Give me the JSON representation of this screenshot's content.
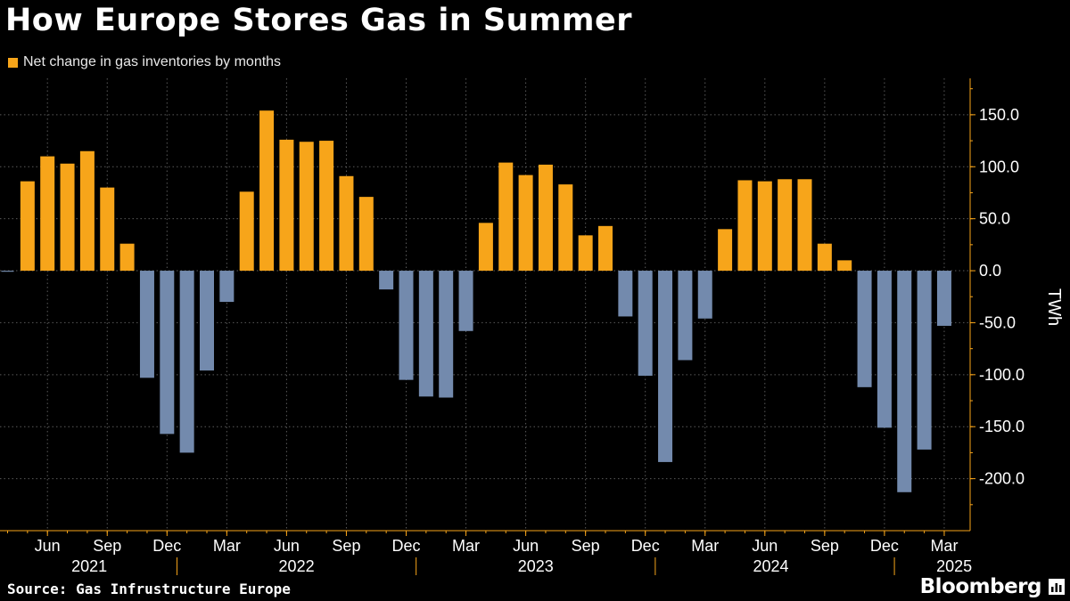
{
  "title": "How Europe Stores Gas in Summer",
  "legend": {
    "label": "Net change in gas inventories by months"
  },
  "footer": {
    "source": "Source: Gas Infrustructure Europe",
    "brand": "Bloomberg"
  },
  "colors": {
    "positive": "#f7a51a",
    "negative": "#738aad",
    "axis": "#f7a51a",
    "grid": "#5a5a5a",
    "background": "#000000",
    "text": "#ffffff"
  },
  "brand_icon": "bloomberg-chart-icon",
  "chart_data": {
    "type": "bar",
    "title": "How Europe Stores Gas in Summer",
    "series": [
      {
        "name": "Net change in gas inventories by months",
        "values": [
          -1,
          86,
          110,
          103,
          115,
          80,
          26,
          -103,
          -157,
          -175,
          -96,
          -30,
          76,
          154,
          126,
          124,
          125,
          91,
          71,
          -18,
          -105,
          -121,
          -122,
          -58,
          46,
          104,
          92,
          102,
          83,
          34,
          43,
          -44,
          -101,
          -184,
          -86,
          -46,
          40,
          87,
          86,
          88,
          88,
          26,
          10,
          -112,
          -151,
          -213,
          -172,
          -53
        ]
      }
    ],
    "x_start": "2021-04",
    "x_step": "month",
    "x_tick_labels": [
      "Jun",
      "Sep",
      "Dec",
      "Mar",
      "Jun",
      "Sep",
      "Dec",
      "Mar",
      "Jun",
      "Sep",
      "Dec",
      "Mar",
      "Jun",
      "Sep",
      "Dec",
      "Mar"
    ],
    "year_labels": [
      "2021",
      "2022",
      "2023",
      "2024",
      "2025"
    ],
    "ylabel": "TWh",
    "ylim": [
      -250,
      185
    ],
    "y_ticks": [
      "150.0",
      "100.0",
      "50.0",
      "0.0",
      "-50.0",
      "-100.0",
      "-150.0",
      "-200.0"
    ],
    "y_axis_position": "right",
    "grid": true,
    "legend_position": "top-left"
  }
}
